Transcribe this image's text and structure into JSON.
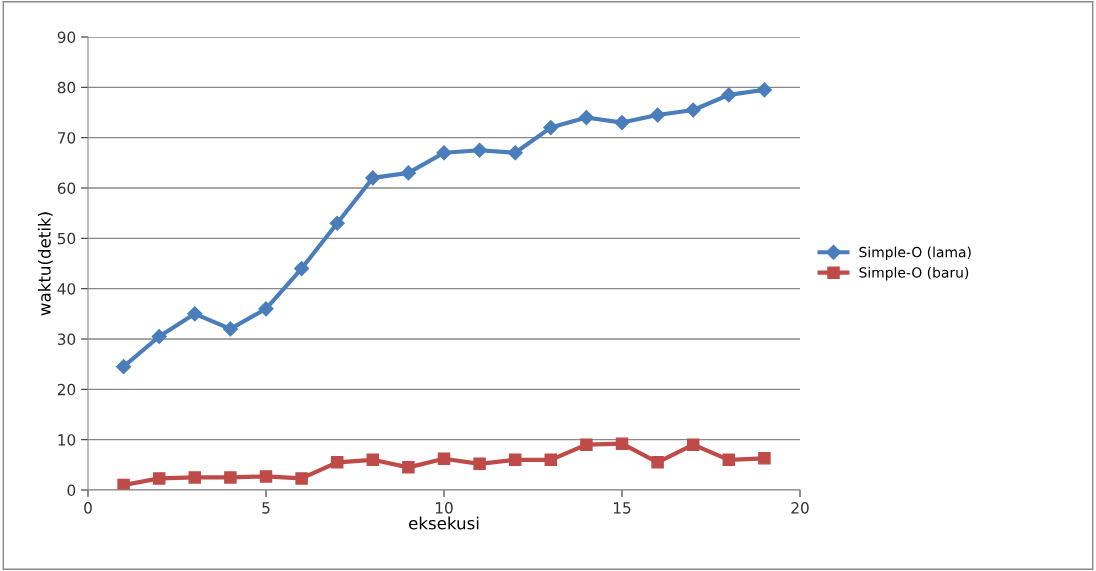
{
  "chart_data": {
    "type": "line",
    "xlabel": "eksekusi",
    "ylabel": "waktu(detik)",
    "x": [
      1,
      2,
      3,
      4,
      5,
      6,
      7,
      8,
      9,
      10,
      11,
      12,
      13,
      14,
      15,
      16,
      17,
      18,
      19
    ],
    "series": [
      {
        "name": "Simple-O (lama)",
        "color": "#4a7ebb",
        "marker": "diamond",
        "values": [
          24.5,
          30.5,
          35,
          32,
          36,
          44,
          53,
          62,
          63,
          67,
          67.5,
          67,
          72,
          74,
          73,
          74.5,
          75.5,
          78.5,
          79.5
        ]
      },
      {
        "name": "Simple-O (baru)",
        "color": "#be4b48",
        "marker": "square",
        "values": [
          1,
          2.3,
          2.5,
          2.5,
          2.7,
          2.3,
          5.5,
          6,
          4.5,
          6.2,
          5.2,
          6,
          6,
          9,
          9.2,
          5.5,
          9,
          6,
          6.3
        ]
      }
    ],
    "xlim": [
      0,
      20
    ],
    "xticks": [
      0,
      5,
      10,
      15,
      20
    ],
    "ylim": [
      0,
      90
    ],
    "yticks": [
      0,
      10,
      20,
      30,
      40,
      50,
      60,
      70,
      80,
      90
    ],
    "grid": "y",
    "legend": "right",
    "line_style": "solid"
  }
}
